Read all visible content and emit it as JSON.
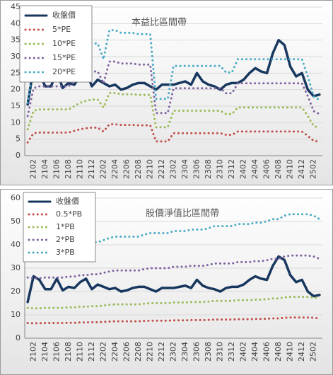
{
  "chart_data": [
    {
      "type": "line",
      "title": "本益比區間帶",
      "categories": [
        null,
        "2102",
        null,
        "2104",
        null,
        "2106",
        null,
        "2108",
        null,
        "2110",
        null,
        "2112",
        null,
        "2202",
        null,
        "2204",
        null,
        "2206",
        null,
        "2208",
        null,
        "2210",
        null,
        "2212",
        null,
        "2302",
        null,
        "2304",
        null,
        "2306",
        null,
        "2308",
        null,
        "2310",
        null,
        "2312",
        null,
        "2402",
        null,
        "2404",
        null,
        "2406",
        null,
        "2408",
        null,
        "2410",
        null,
        "2412",
        null,
        "2502",
        null
      ],
      "ylim": [
        0,
        45
      ],
      "yticks": [
        0,
        5,
        10,
        15,
        20,
        25,
        30,
        35,
        40,
        45
      ],
      "grid": true,
      "legend": "upper left",
      "series": [
        {
          "name": "收盤價",
          "color": "#17375e",
          "style": "solid",
          "values": [
            15.5,
            26.5,
            25,
            21,
            21,
            25.5,
            20.5,
            22,
            21.5,
            24,
            25.5,
            21,
            23,
            22,
            21,
            21.5,
            20,
            20.5,
            21.5,
            22,
            22,
            21,
            20,
            21.5,
            21.5,
            21.5,
            22,
            22.5,
            21.5,
            25,
            22.5,
            21.5,
            21,
            20,
            21.5,
            22,
            22,
            23,
            25,
            26.5,
            25.5,
            25,
            31,
            35,
            33.5,
            27,
            24,
            25,
            20,
            18,
            18.5
          ]
        },
        {
          "name": "5*PE",
          "color": "#c0504d",
          "style": "dotted",
          "values": [
            4,
            6.8,
            7,
            7,
            7,
            7,
            7,
            7,
            7.5,
            8,
            8.3,
            8.5,
            8.5,
            7.3,
            9.5,
            9.5,
            9.3,
            9.3,
            9.3,
            9.2,
            9.2,
            9.2,
            4.3,
            4.3,
            4.3,
            6.8,
            6.8,
            6.8,
            6.8,
            6.8,
            6.8,
            6.8,
            6.8,
            6.8,
            6.3,
            6.3,
            7.3,
            7.3,
            7.3,
            7.3,
            7.3,
            7.3,
            7.3,
            7.3,
            7.3,
            7.3,
            7.3,
            7.3,
            6,
            4.5,
            4.2
          ]
        },
        {
          "name": "10*PE",
          "color": "#9bbb59",
          "style": "dotted",
          "values": [
            8,
            13.6,
            14,
            14,
            14,
            14,
            14,
            14,
            15,
            16,
            16.6,
            17,
            17,
            14.6,
            19,
            19,
            18.6,
            18.6,
            18.6,
            18.4,
            18.4,
            18.4,
            8.6,
            8.6,
            8.6,
            13.6,
            13.6,
            13.6,
            13.6,
            13.6,
            13.6,
            13.6,
            13.6,
            13.6,
            12.6,
            12.6,
            14.6,
            14.6,
            14.6,
            14.6,
            14.6,
            14.6,
            14.6,
            14.6,
            14.6,
            14.6,
            14.6,
            14.6,
            12,
            9,
            8.4
          ]
        },
        {
          "name": "15*PE",
          "color": "#8064a2",
          "style": "dotted",
          "values": [
            12,
            20.4,
            21,
            21,
            21,
            21,
            21,
            21,
            22.5,
            24,
            24.9,
            25.5,
            25.5,
            21.9,
            28.5,
            28.5,
            27.9,
            27.9,
            27.9,
            27.6,
            27.6,
            27.6,
            12.9,
            12.9,
            12.9,
            20.4,
            20.4,
            20.4,
            20.4,
            20.4,
            20.4,
            20.4,
            20.4,
            20.4,
            18.9,
            18.9,
            21.9,
            21.9,
            21.9,
            21.9,
            21.9,
            21.9,
            21.9,
            21.9,
            21.9,
            21.9,
            21.9,
            21.9,
            18,
            13.5,
            12.6
          ]
        },
        {
          "name": "20*PE",
          "color": "#4bacc6",
          "style": "dotted",
          "values": [
            16,
            27.2,
            28,
            28,
            28,
            28,
            28,
            28,
            30,
            32,
            33.2,
            34,
            34,
            29.2,
            38,
            38,
            37.2,
            37.2,
            37.2,
            36.8,
            36.8,
            36.8,
            17.2,
            17.2,
            17.2,
            27.2,
            27.2,
            27.2,
            27.2,
            27.2,
            27.2,
            27.2,
            27.2,
            27.2,
            25.2,
            25.2,
            29.2,
            29.2,
            29.2,
            29.2,
            29.2,
            29.2,
            29.2,
            29.2,
            29.2,
            29.2,
            29.2,
            29.2,
            24,
            18,
            16.8
          ]
        }
      ]
    },
    {
      "type": "line",
      "title": "股價淨值比區間帶",
      "categories": [
        null,
        "2102",
        null,
        "2104",
        null,
        "2106",
        null,
        "2108",
        null,
        "2110",
        null,
        "2112",
        null,
        "2202",
        null,
        "2204",
        null,
        "2206",
        null,
        "2208",
        null,
        "2210",
        null,
        "2212",
        null,
        "2302",
        null,
        "2304",
        null,
        "2306",
        null,
        "2308",
        null,
        "2310",
        null,
        "2312",
        null,
        "2402",
        null,
        "2404",
        null,
        "2406",
        null,
        "2408",
        null,
        "2410",
        null,
        "2412",
        null,
        "2502",
        null
      ],
      "ylim": [
        0,
        60
      ],
      "yticks": [
        0,
        10,
        20,
        30,
        40,
        50,
        60
      ],
      "grid": true,
      "legend": "upper left",
      "series": [
        {
          "name": "收盤價",
          "color": "#17375e",
          "style": "solid",
          "values": [
            15.5,
            26.5,
            25,
            21,
            21,
            25.5,
            20.5,
            22,
            21.5,
            24,
            25.5,
            21,
            23,
            22,
            21,
            21.5,
            20,
            20.5,
            21.5,
            22,
            22,
            21,
            20,
            21.5,
            21.5,
            21.5,
            22,
            22.5,
            21.5,
            25,
            22.5,
            21.5,
            21,
            20,
            21.5,
            22,
            22,
            23,
            25,
            26.5,
            25.5,
            25,
            31,
            35,
            33.5,
            27,
            24,
            25,
            20,
            18,
            18.5
          ]
        },
        {
          "name": "0.5*PB",
          "color": "#c0504d",
          "style": "dotted",
          "values": [
            6.5,
            6.4,
            6.4,
            6.5,
            6.5,
            6.5,
            6.5,
            6.6,
            6.6,
            6.75,
            6.75,
            6.85,
            6.85,
            7,
            7.15,
            7.25,
            7.25,
            7.25,
            7.25,
            7.25,
            7.4,
            7.5,
            7.5,
            7.5,
            7.5,
            7.65,
            7.65,
            7.65,
            7.75,
            7.75,
            7.75,
            7.85,
            8,
            8,
            8,
            8,
            8.15,
            8.15,
            8.15,
            8.25,
            8.25,
            8.35,
            8.5,
            8.5,
            8.75,
            8.85,
            8.85,
            8.85,
            8.85,
            8.75,
            8.5
          ]
        },
        {
          "name": "1*PB",
          "color": "#9bbb59",
          "style": "dotted",
          "values": [
            13,
            12.8,
            12.8,
            13,
            13,
            13,
            13,
            13.2,
            13.2,
            13.5,
            13.5,
            13.7,
            13.7,
            14,
            14.3,
            14.5,
            14.5,
            14.5,
            14.5,
            14.5,
            14.8,
            15,
            15,
            15,
            15,
            15.3,
            15.3,
            15.3,
            15.5,
            15.5,
            15.5,
            15.7,
            16,
            16,
            16,
            16,
            16.3,
            16.3,
            16.3,
            16.5,
            16.5,
            16.7,
            17,
            17,
            17.5,
            17.7,
            17.7,
            17.7,
            17.7,
            17.5,
            17
          ]
        },
        {
          "name": "2*PB",
          "color": "#8064a2",
          "style": "dotted",
          "values": [
            26,
            25.6,
            25.6,
            26,
            26,
            26,
            26,
            26.4,
            26.4,
            27,
            27,
            27.4,
            27.4,
            28,
            28.6,
            29,
            29,
            29,
            29,
            29,
            29.6,
            30,
            30,
            30,
            30,
            30.6,
            30.6,
            30.6,
            31,
            31,
            31,
            31.4,
            32,
            32,
            32,
            32,
            32.6,
            32.6,
            32.6,
            33,
            33,
            33.4,
            34,
            34,
            35,
            35.4,
            35.4,
            35.4,
            35.4,
            35,
            34
          ]
        },
        {
          "name": "3*PB",
          "color": "#4bacc6",
          "style": "dotted",
          "values": [
            39,
            38.4,
            38.4,
            39,
            39,
            39,
            39,
            39.6,
            39.6,
            40.5,
            40.5,
            41.1,
            41.1,
            42,
            42.9,
            43.5,
            43.5,
            43.5,
            43.5,
            43.5,
            44.4,
            45,
            45,
            45,
            45,
            45.9,
            45.9,
            45.9,
            46.5,
            46.5,
            46.5,
            47.1,
            48,
            48,
            48,
            48,
            48.9,
            48.9,
            48.9,
            49.5,
            49.5,
            50.1,
            51,
            51,
            52.5,
            53.1,
            53.1,
            53.1,
            53.1,
            52.5,
            51
          ]
        }
      ]
    }
  ]
}
